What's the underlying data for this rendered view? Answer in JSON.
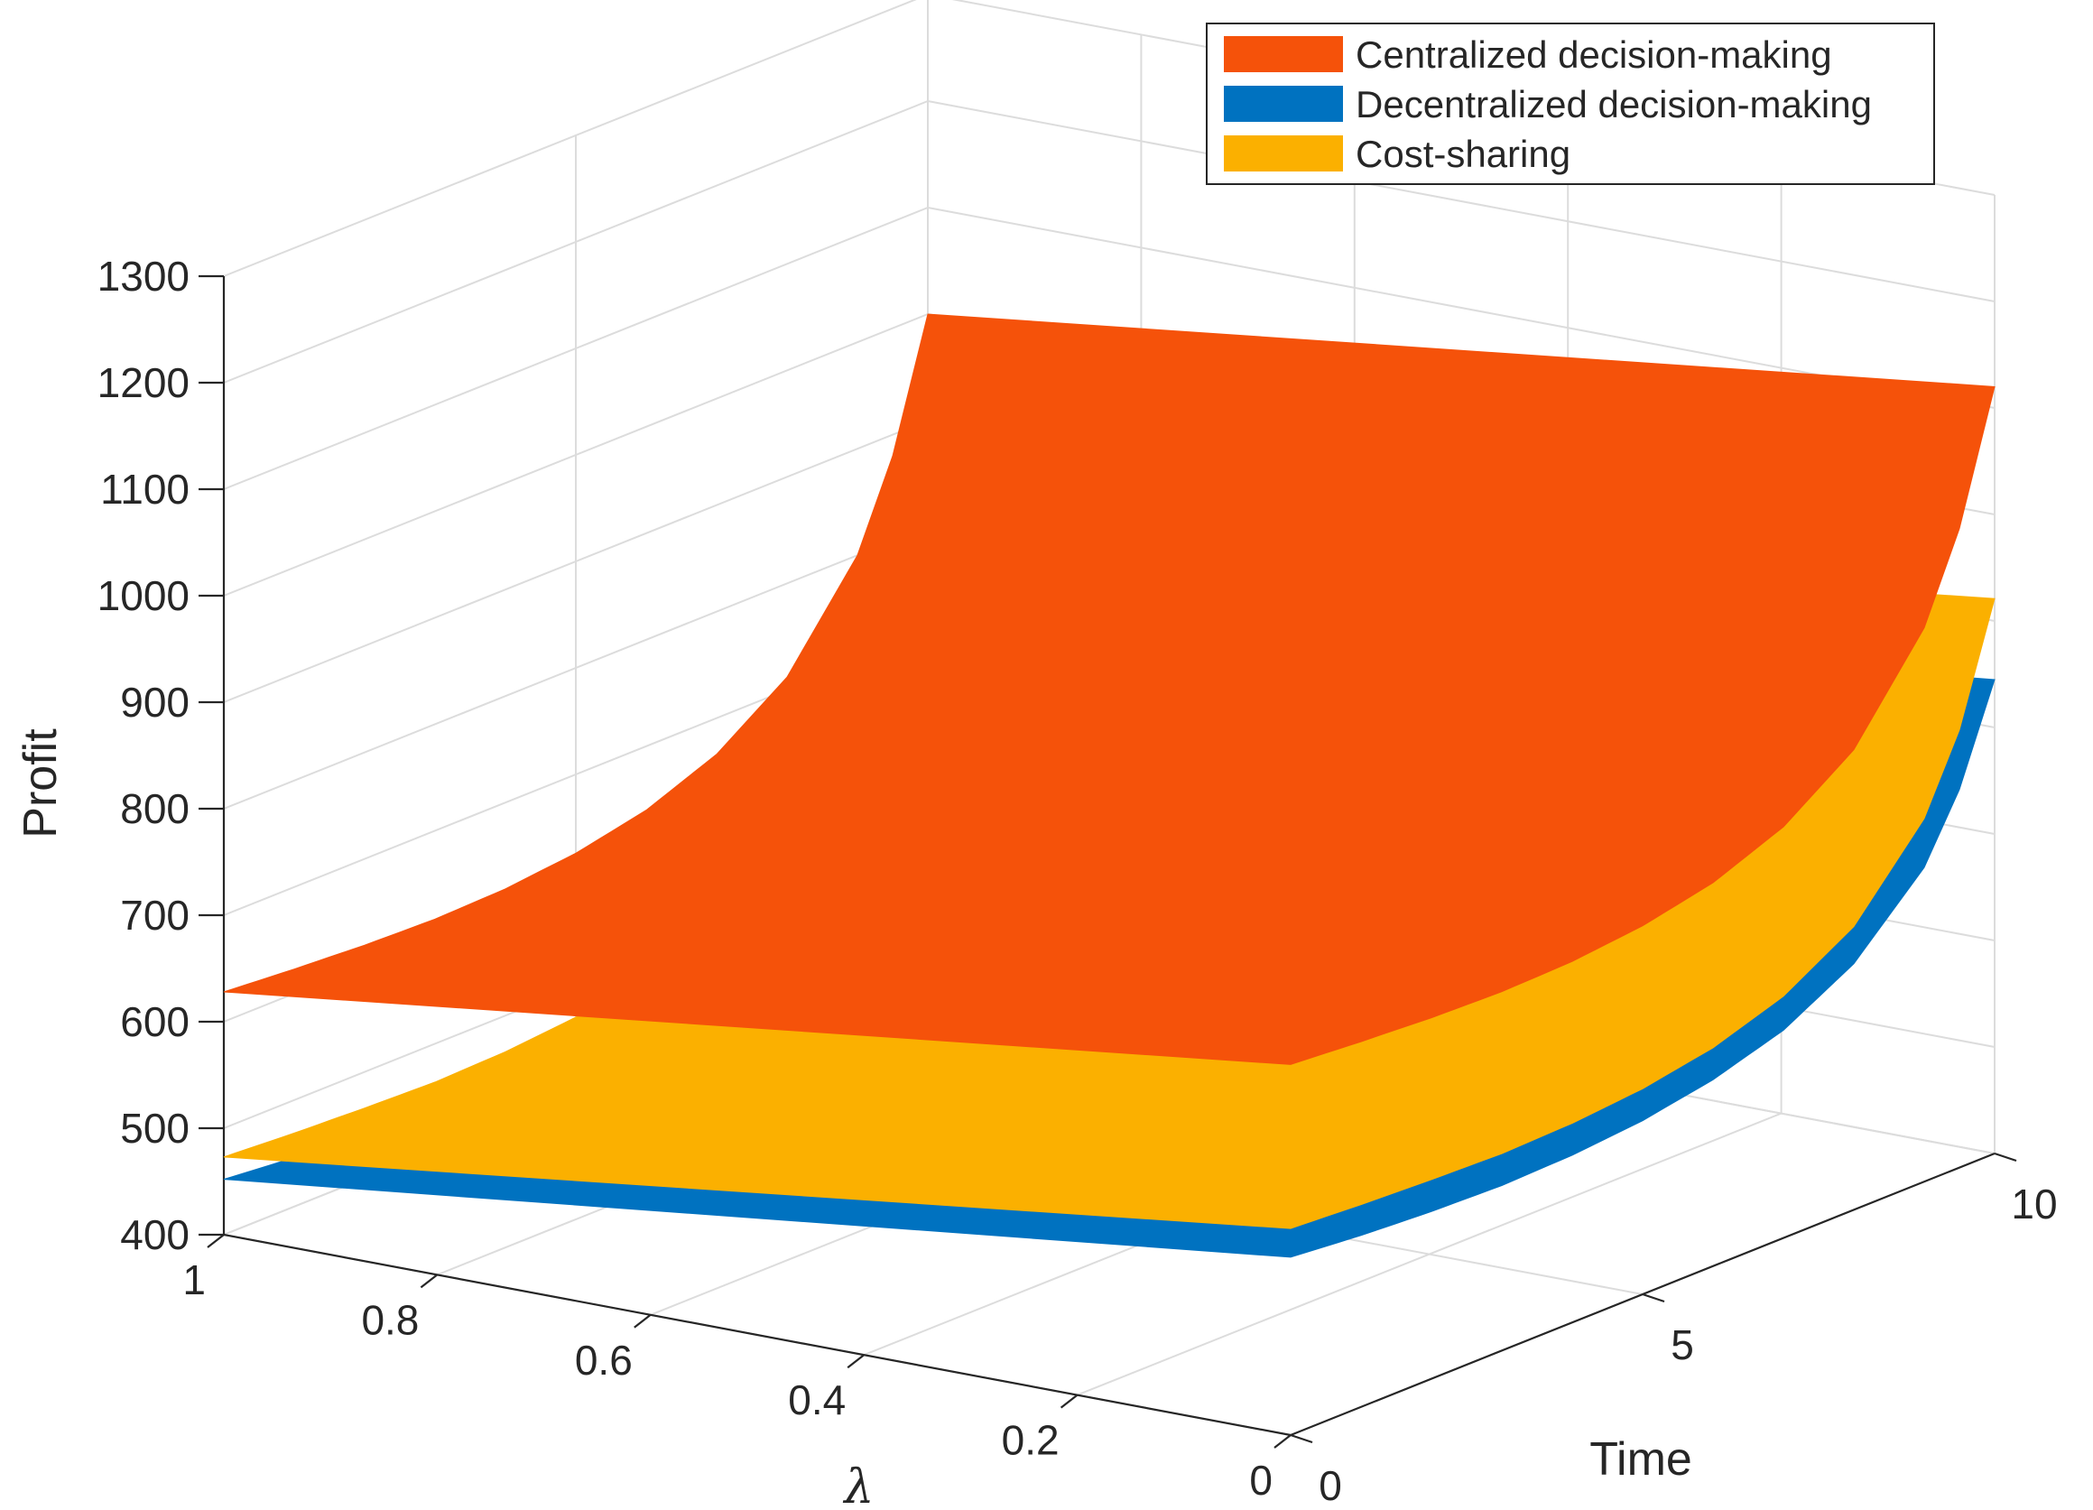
{
  "chart_data": {
    "type": "surface3d",
    "title": "",
    "zlabel": "Profit",
    "xlabel": "Time",
    "ylabel": "λ",
    "xlim": [
      0,
      10
    ],
    "ylim": [
      0,
      1
    ],
    "zlim": [
      400,
      1300
    ],
    "xticks": [
      0,
      5,
      10
    ],
    "xtick_labels": [
      "0",
      "5",
      "10"
    ],
    "yticks": [
      0,
      0.2,
      0.4,
      0.6,
      0.8,
      1
    ],
    "ytick_labels": [
      "0",
      "0.2",
      "0.4",
      "0.6",
      "0.8",
      "1"
    ],
    "zticks": [
      400,
      500,
      600,
      700,
      800,
      900,
      1000,
      1100,
      1200,
      1300
    ],
    "ztick_labels": [
      "400",
      "500",
      "600",
      "700",
      "800",
      "900",
      "1000",
      "1100",
      "1200",
      "1300"
    ],
    "grid": true,
    "legend_position": "top-right",
    "series": [
      {
        "name": "Centralized decision-making",
        "color": "#F5520A",
        "profile_time": [
          0,
          1,
          2,
          3,
          4,
          5,
          6,
          7,
          8,
          9,
          9.5,
          10
        ],
        "profile_profit_at_lambda_1": [
          628,
          623,
          619,
          617,
          619,
          626,
          640,
          666,
          712,
          800,
          880,
          1000
        ],
        "profit_increase_per_unit_lambda_decrease": 120
      },
      {
        "name": "Decentralized decision-making",
        "color": "#0072C0",
        "profile_time": [
          0,
          1,
          2,
          3,
          4,
          5,
          6,
          7,
          8,
          9,
          9.5,
          10
        ],
        "profile_profit_at_lambda_1": [
          452,
          446,
          442,
          440,
          442,
          448,
          460,
          480,
          516,
          580,
          640,
          730
        ],
        "profit_increase_per_unit_lambda_decrease": 115
      },
      {
        "name": "Cost-sharing",
        "color": "#FBB000",
        "profile_time": [
          0,
          1,
          2,
          3,
          4,
          5,
          6,
          7,
          8,
          9,
          9.5,
          10
        ],
        "profile_profit_at_lambda_1": [
          473,
          469,
          466,
          464,
          466,
          472,
          484,
          506,
          545,
          620,
          690,
          800
        ],
        "profit_increase_per_unit_lambda_decrease": 121
      }
    ]
  }
}
